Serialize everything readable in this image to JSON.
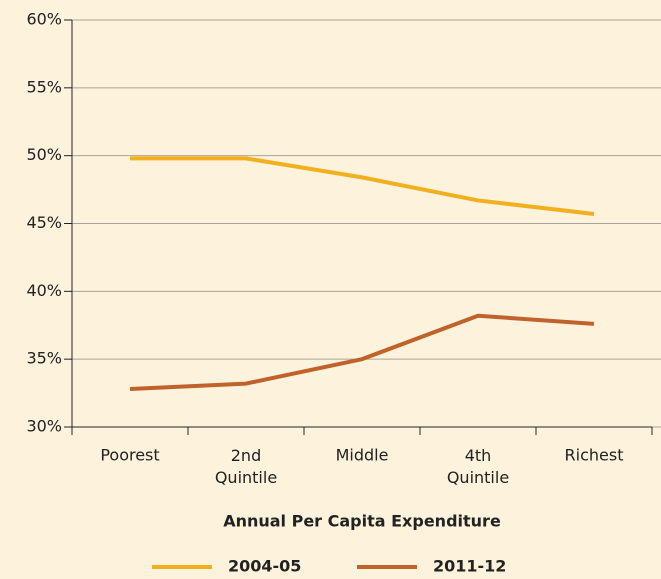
{
  "chart_data": {
    "type": "line",
    "xlabel": "Annual Per Capita Expenditure",
    "categories": [
      "Poorest",
      "2nd Quintile",
      "Middle",
      "4th Quintile",
      "Richest"
    ],
    "series": [
      {
        "name": "2004-05",
        "color": "#f2b01e",
        "values": [
          49.8,
          49.8,
          48.4,
          46.7,
          45.7
        ]
      },
      {
        "name": "2011-12",
        "color": "#c0622a",
        "values": [
          32.8,
          33.2,
          35.0,
          38.2,
          37.6
        ]
      }
    ],
    "ylim": [
      30,
      60
    ],
    "yticks": [
      {
        "value": 30,
        "label": "30%"
      },
      {
        "value": 35,
        "label": "35%"
      },
      {
        "value": 40,
        "label": "40%"
      },
      {
        "value": 45,
        "label": "45%"
      },
      {
        "value": 50,
        "label": "50%"
      },
      {
        "value": 55,
        "label": "55%"
      },
      {
        "value": 60,
        "label": "60%"
      }
    ],
    "grid": true,
    "legend": "bottom"
  }
}
